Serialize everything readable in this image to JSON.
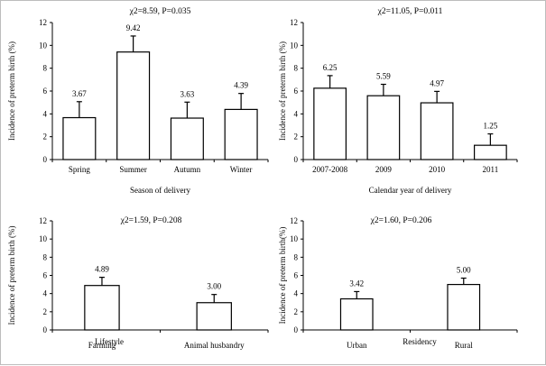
{
  "chart_data": [
    {
      "type": "bar",
      "title": "χ2=8.59, P=0.035",
      "xlabel": "Season of delivery",
      "ylabel": "Incidence of preterm birth (%)",
      "categories": [
        "Spring",
        "Summer",
        "Autumn",
        "Winter"
      ],
      "values": [
        3.67,
        9.42,
        3.63,
        4.39
      ],
      "value_labels": [
        "3.67",
        "9.42",
        "3.63",
        "4.39"
      ],
      "error": [
        1.4,
        1.4,
        1.4,
        1.4
      ],
      "ylim": [
        0,
        12
      ],
      "yticks": [
        "0",
        "2",
        "4",
        "6",
        "8",
        "10",
        "12"
      ]
    },
    {
      "type": "bar",
      "title": "χ2=11.05, P=0.011",
      "xlabel": "Calendar year of delivery",
      "ylabel": "Incidence of preterm birth (%)",
      "categories": [
        "2007-2008",
        "2009",
        "2010",
        "2011"
      ],
      "values": [
        6.25,
        5.59,
        4.97,
        1.25
      ],
      "value_labels": [
        "6.25",
        "5.59",
        "4.97",
        "1.25"
      ],
      "error": [
        1.1,
        1.0,
        1.0,
        1.0
      ],
      "ylim": [
        0,
        12
      ],
      "yticks": [
        "0",
        "2",
        "4",
        "6",
        "8",
        "10",
        "12"
      ]
    },
    {
      "type": "bar",
      "title": "χ2=1.59, P=0.208",
      "xlabel": "Lifestyle",
      "ylabel": "Incidence of preterm birth (%)",
      "categories": [
        "Farming",
        "Animal husbandry"
      ],
      "values": [
        4.89,
        3.0
      ],
      "value_labels": [
        "4.89",
        "3.00"
      ],
      "error": [
        0.9,
        0.9
      ],
      "ylim": [
        0,
        12
      ],
      "yticks": [
        "0",
        "2",
        "4",
        "6",
        "8",
        "10",
        "12"
      ]
    },
    {
      "type": "bar",
      "title": "χ2=1.60, P=0.206",
      "xlabel": "Residency",
      "ylabel": "Incidence of preterm birth(%)",
      "categories": [
        "Urban",
        "Rural"
      ],
      "values": [
        3.42,
        5.0
      ],
      "value_labels": [
        "3.42",
        "5.00"
      ],
      "error": [
        0.8,
        0.7
      ],
      "ylim": [
        0,
        12
      ],
      "yticks": [
        "0",
        "2",
        "4",
        "6",
        "8",
        "10",
        "12"
      ]
    }
  ]
}
